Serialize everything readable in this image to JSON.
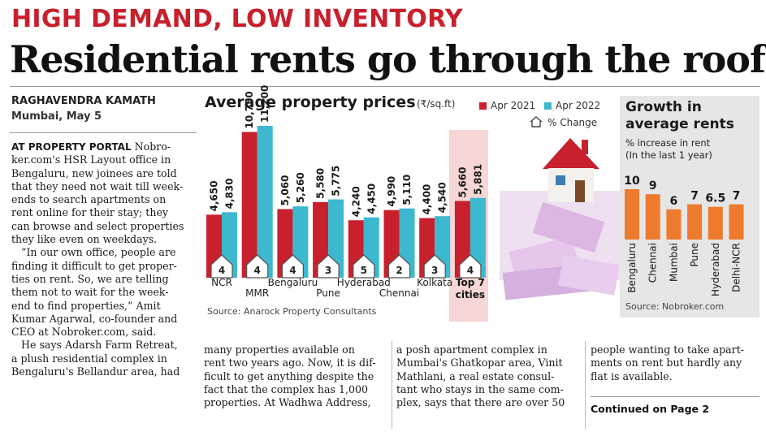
{
  "kicker": "HIGH DEMAND, LOW INVENTORY",
  "headline": "Residential rents go through the roof",
  "byline": {
    "author": "RAGHAVENDRA KAMATH",
    "place_date": "Mumbai, May 5"
  },
  "article": {
    "col1": [
      "AT PROPERTY PORTAL Nobro-",
      "ker.com's HSR Layout office in",
      "Bengaluru, new joinees are told",
      "that they need not wait till week-",
      "ends to search apartments on",
      "rent online for their stay; they",
      "can browse and select properties",
      "they like even on weekdays.",
      "“In our own office, people are",
      "finding it difficult to get proper-",
      "ties on rent. So, we are telling",
      "them not to wait for the week-",
      "end to find properties,” Amit",
      "Kumar Agarwal, co-founder and",
      "CEO at Nobroker.com, said.",
      "He says Adarsh Farm Retreat,",
      "a plush residential complex in",
      "Bengaluru's Bellandur area, had"
    ],
    "col1_lead": "AT PROPERTY PORTAL",
    "col2": [
      "many properties available on",
      "rent two years ago. Now, it is dif-",
      "ficult to get anything despite the",
      "fact that the complex has 1,000",
      "properties. At Wadhwa Address,"
    ],
    "col3": [
      "a posh apartment complex in",
      "Mumbai's Ghatkopar area, Vinit",
      "Mathlani, a real estate consul-",
      "tant who stays in the same com-",
      "plex, says that there are over 50"
    ],
    "col4": [
      "people wanting to take apart-",
      "ments on rent but hardly any",
      "flat is available."
    ],
    "continued": "Continued on Page 2"
  },
  "charts": {
    "prices": {
      "title": "Average property prices",
      "unit": "(₹/sq.ft)",
      "legend_2021": "Apr 2021",
      "legend_2022": "Apr 2022",
      "legend_change": "% Change",
      "source": "Source: Anarock Property Consultants"
    },
    "growth": {
      "title_line1": "Growth in",
      "title_line2": "average rents",
      "subtitle_line1": "% increase in rent",
      "subtitle_line2": "(In the last 1 year)",
      "source": "Source: Nobroker.com"
    }
  },
  "colors": {
    "kicker": "#c8202d",
    "bar_2021": "#c8202d",
    "bar_2022": "#3cb8cf",
    "rent_bar": "#ee7a2e",
    "highlight_band": "#f7d6d6"
  },
  "chart_data": [
    {
      "type": "bar",
      "title": "Average property prices",
      "unit": "₹/sq.ft",
      "categories": [
        "NCR",
        "MMR",
        "Bengaluru",
        "Pune",
        "Hyderabad",
        "Chennai",
        "Kolkata",
        "Top 7 cities"
      ],
      "series": [
        {
          "name": "Apr 2021",
          "values": [
            4650,
            10750,
            5060,
            5580,
            4240,
            4990,
            4400,
            5660
          ]
        },
        {
          "name": "Apr 2022",
          "values": [
            4830,
            11200,
            5260,
            5775,
            4450,
            5110,
            4540,
            5881
          ]
        }
      ],
      "value_labels_2021": [
        "4,650",
        "10,750",
        "5,060",
        "5,580",
        "4,240",
        "4,990",
        "4,400",
        "5,660"
      ],
      "value_labels_2022": [
        "4,830",
        "11,200",
        "5,260",
        "5,775",
        "4,450",
        "5,110",
        "4,540",
        "5,881"
      ],
      "pct_change": [
        4,
        4,
        4,
        3,
        5,
        2,
        3,
        4
      ],
      "pct_change_labels": [
        "4",
        "4",
        "4",
        "3",
        "5",
        "2",
        "3",
        "4"
      ],
      "highlight": "Top 7 cities"
    },
    {
      "type": "bar",
      "title": "Growth in average rents",
      "unit": "% increase in rent",
      "categories": [
        "Bengaluru",
        "Chennai",
        "Mumbai",
        "Pune",
        "Hyderabad",
        "Delhi-NCR"
      ],
      "values": [
        10,
        9,
        6,
        7,
        6.5,
        7
      ],
      "value_labels": [
        "10",
        "9",
        "6",
        "7",
        "6.5",
        "7"
      ]
    }
  ]
}
